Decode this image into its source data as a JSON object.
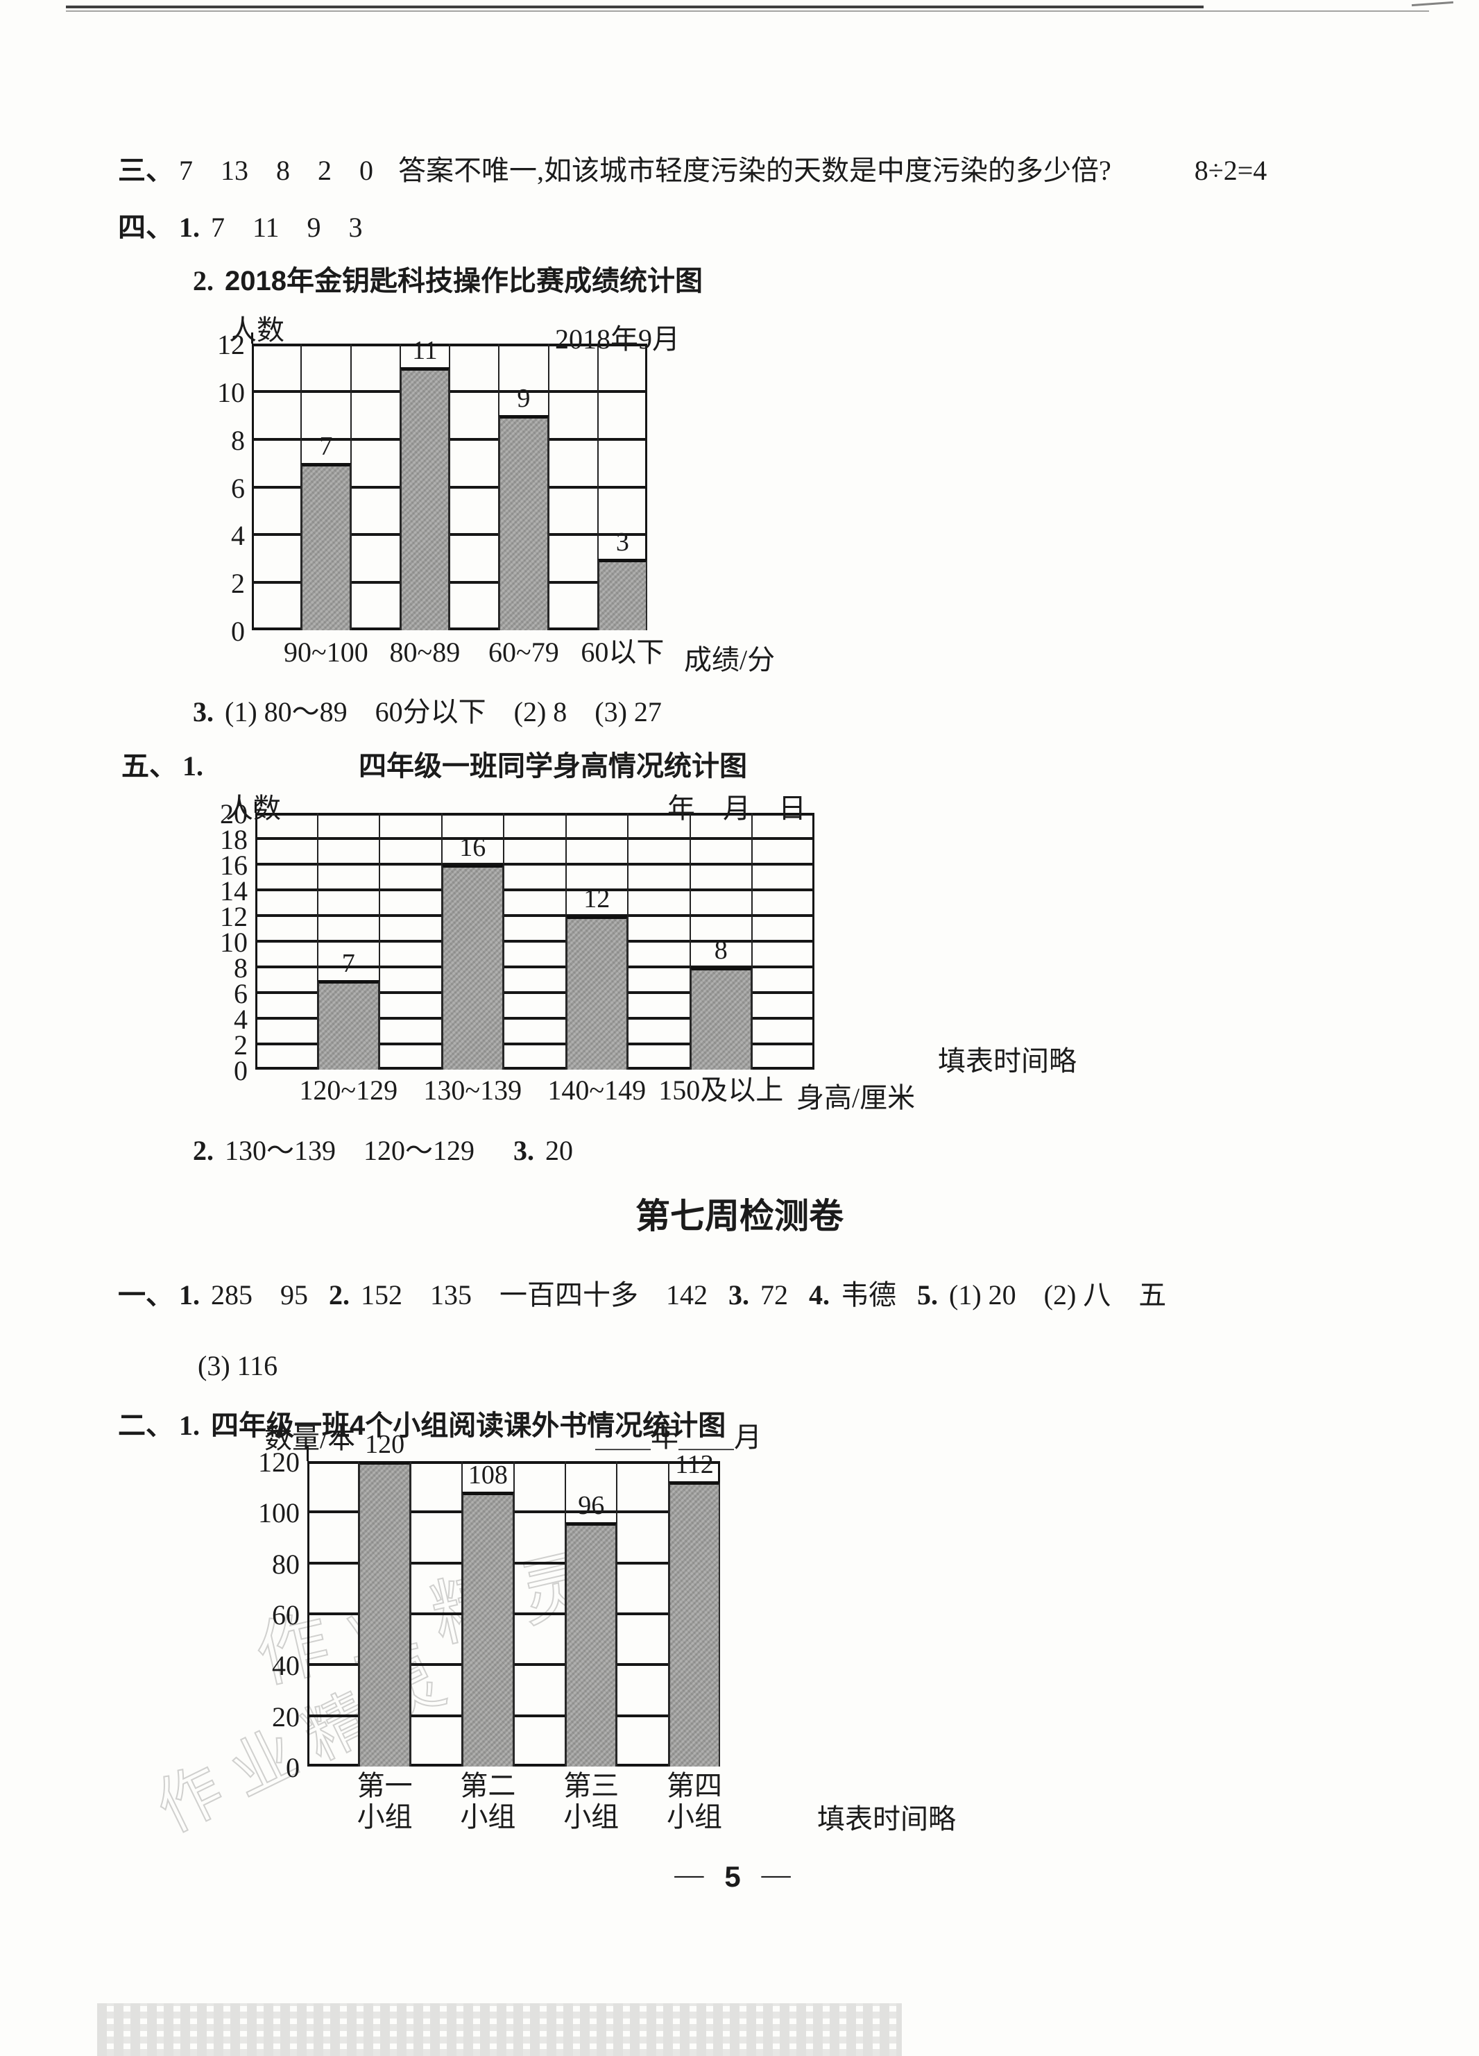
{
  "page_number": "5",
  "footer": {
    "left_dash": "—",
    "number": "5",
    "right_dash": "—"
  },
  "heading_week7": "第七周检测卷",
  "watermark": "作业精灵",
  "lines": [
    {
      "id": "l-sec3",
      "name": "answer-line-section3",
      "segs": [
        {
          "c": "lbl",
          "t": "三、"
        },
        {
          "c": "ans",
          "t": "7　13　8　2　0"
        },
        {
          "c": "ans gap",
          "t": "答案不唯一,如该城市轻度污染的天数是中度污染的多少倍?"
        },
        {
          "c": "ans gap2",
          "t": "8÷2=4"
        }
      ]
    },
    {
      "id": "l-sec4",
      "name": "answer-line-section4",
      "segs": [
        {
          "c": "lbl",
          "t": "四、"
        },
        {
          "c": "itm",
          "t": "1."
        },
        {
          "c": "ans",
          "t": "7　11　9　3"
        }
      ]
    },
    {
      "id": "l-c1title",
      "name": "chart1-title-line",
      "segs": [
        {
          "c": "itm",
          "t": "2."
        },
        {
          "c": "ttl",
          "t": "2018年金钥匙科技操作比赛成绩统计图"
        }
      ]
    },
    {
      "id": "l-ans3",
      "name": "answer-line-item3",
      "segs": [
        {
          "c": "itm",
          "t": "3."
        },
        {
          "c": "ans",
          "t": "(1) 80～89　60分以下　(2) 8　(3) 27"
        }
      ]
    },
    {
      "id": "l-sec5",
      "name": "chart2-title-line",
      "segs": [
        {
          "c": "lbl",
          "t": "五、"
        },
        {
          "c": "itm",
          "t": "1."
        },
        {
          "c": "ttl",
          "t": "四年级一班同学身高情况统计图"
        }
      ]
    },
    {
      "id": "l-ans5",
      "name": "answer-line-section5",
      "segs": [
        {
          "c": "itm",
          "t": "2."
        },
        {
          "c": "ans",
          "t": "130～139　120～129"
        },
        {
          "c": "itm gap",
          "t": "3."
        },
        {
          "c": "ans",
          "t": "20"
        }
      ]
    },
    {
      "id": "l-sec1",
      "name": "answer-line-week7-section1",
      "segs": [
        {
          "c": "lbl",
          "t": "一、"
        },
        {
          "c": "itm",
          "t": "1."
        },
        {
          "c": "ans",
          "t": "285　95"
        },
        {
          "c": "itm gap",
          "t": "2."
        },
        {
          "c": "ans",
          "t": "152　135　一百四十多　142"
        },
        {
          "c": "itm gap",
          "t": "3."
        },
        {
          "c": "ans",
          "t": "72"
        },
        {
          "c": "itm gap",
          "t": "4."
        },
        {
          "c": "ans",
          "t": "韦德"
        },
        {
          "c": "itm gap",
          "t": "5."
        },
        {
          "c": "ans",
          "t": "(1) 20　(2) 八　五"
        }
      ]
    },
    {
      "id": "l-sec1b",
      "name": "answer-line-week7-section1-cont",
      "segs": [
        {
          "c": "ans",
          "t": "(3) 116"
        }
      ]
    },
    {
      "id": "l-sec2",
      "name": "chart3-title-line",
      "segs": [
        {
          "c": "lbl",
          "t": "二、"
        },
        {
          "c": "itm",
          "t": "1."
        },
        {
          "c": "ttl",
          "t": "四年级一班4个小组阅读课外书情况统计图"
        }
      ]
    }
  ],
  "chart_data": [
    {
      "type": "bar",
      "title": "2018年金钥匙科技操作比赛成绩统计图",
      "y_unit_label": "人数",
      "corner_label": "2018年9月",
      "categories": [
        "90~100",
        "80~89",
        "60~79",
        "60以下"
      ],
      "values": [
        7,
        11,
        9,
        3
      ],
      "yticks": [
        0,
        2,
        4,
        6,
        8,
        10,
        12
      ],
      "ymax": 12,
      "xlabel": "成绩/分",
      "note": "",
      "grid_columns": 8,
      "grid": "on",
      "bar_fill": "#a7a7a5"
    },
    {
      "type": "bar",
      "title": "四年级一班同学身高情况统计图",
      "y_unit_label": "人数",
      "corner_label": "年　月　日",
      "categories": [
        "120~129",
        "130~139",
        "140~149",
        "150及以上"
      ],
      "values": [
        7,
        16,
        12,
        8
      ],
      "yticks": [
        0,
        2,
        4,
        6,
        8,
        10,
        12,
        14,
        16,
        18,
        20
      ],
      "ymax": 20,
      "xlabel": "身高/厘米",
      "note": "填表时间略",
      "grid_columns": 9,
      "grid": "on",
      "bar_fill": "#a7a7a5"
    },
    {
      "type": "bar",
      "title": "四年级一班4个小组阅读课外书情况统计图",
      "y_unit_label": "数量/本",
      "corner_label": "＿＿年＿＿月",
      "categories": [
        "第一\n小组",
        "第二\n小组",
        "第三\n小组",
        "第四\n小组"
      ],
      "values": [
        120,
        108,
        96,
        112
      ],
      "yticks": [
        0,
        20,
        40,
        60,
        80,
        100,
        120
      ],
      "ymax": 120,
      "xlabel": "",
      "note": "填表时间略",
      "grid_columns": 8,
      "grid": "on",
      "bar_fill": "#a7a7a5"
    }
  ]
}
